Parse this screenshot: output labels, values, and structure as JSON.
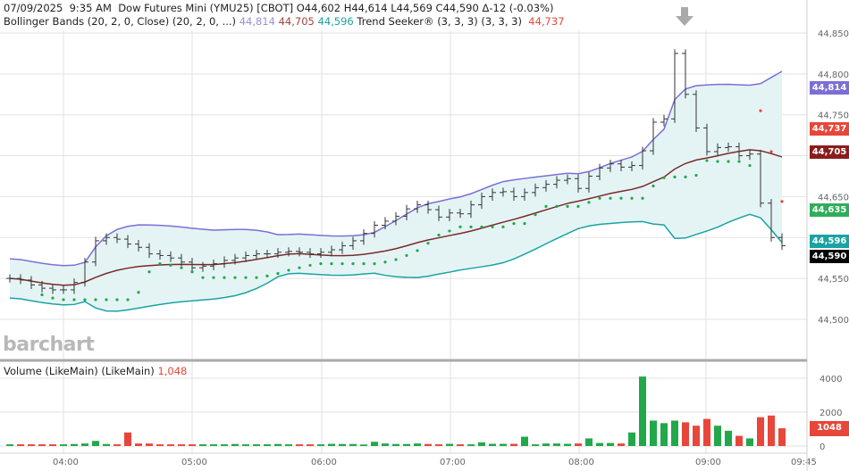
{
  "header": {
    "date": "07/09/2025",
    "time": "9:35 AM",
    "instrument": "Dow Futures Mini (YMU25) [CBOT]",
    "open": "O44,602",
    "high": "H44,614",
    "low": "L44,569",
    "close": "C44,590",
    "change": "Δ-12 (-0.03%)",
    "bb_label": "Bollinger Bands (20, 2, 0, Close)  (20, 2, 0, ...)",
    "bb_upper": "44,814",
    "bb_middle": "44,705",
    "bb_lower": "44,596",
    "ts_label": "Trend Seeker® (3, 3, 3)  (3, 3, 3)",
    "ts_value": "44,737"
  },
  "volume_header": {
    "label": "Volume (LikeMain)  (LikeMain)",
    "value": "1,048"
  },
  "watermark": "barchart",
  "price_tags": [
    {
      "text": "44,814",
      "color": "#7b6fd6",
      "price": 44814
    },
    {
      "text": "44,737",
      "color": "#e8463a",
      "price": 44737
    },
    {
      "text": "44,705",
      "color": "#8b1c1c",
      "price": 44705
    },
    {
      "text": "44,635",
      "color": "#2fae5a",
      "price": 44635
    },
    {
      "text": "44,596",
      "color": "#1aa3a3",
      "price": 44596
    },
    {
      "text": "44,590",
      "color": "#000000",
      "price": 44590
    }
  ],
  "volume_tag": {
    "text": "1048",
    "color": "#e8463a",
    "value": 1048
  },
  "colors": {
    "upper": "#7b6fd6",
    "middle": "#7a2a2a",
    "lower": "#1aa3a3",
    "band_fill": "#e4f4f4",
    "up": "#22a84a",
    "down": "#e8463a"
  },
  "chart_data": [
    {
      "type": "ohlc",
      "interval": "5 min",
      "start_time": "03:35",
      "y_ticks": [
        44500,
        44550,
        44600,
        44650,
        44700,
        44750,
        44800,
        44850
      ],
      "y_tick_labels": [
        "44,500",
        "44,550",
        "",
        "44,650",
        "",
        "44,750",
        "44,800",
        "44,850"
      ],
      "ylim": [
        44480,
        44870
      ],
      "closes": [
        44550,
        44548,
        44542,
        44538,
        44536,
        44536,
        44545,
        44570,
        44596,
        44600,
        44598,
        44592,
        44588,
        44580,
        44578,
        44575,
        44570,
        44563,
        44565,
        44568,
        44572,
        44575,
        44578,
        44580,
        44580,
        44582,
        44583,
        44582,
        44580,
        44582,
        44585,
        44590,
        44596,
        44605,
        44615,
        44620,
        44626,
        44635,
        44640,
        44634,
        44625,
        44630,
        44629,
        44640,
        44650,
        44655,
        44656,
        44650,
        44655,
        44661,
        44665,
        44670,
        44672,
        44660,
        44675,
        44685,
        44690,
        44686,
        44688,
        44706,
        44741,
        44745,
        44825,
        44775,
        44734,
        44705,
        44710,
        44711,
        44700,
        44702,
        44642,
        44600,
        44590
      ],
      "overlays": [
        "Bollinger Bands (20, 2)",
        "Trend Seeker"
      ]
    },
    {
      "type": "bar",
      "title": "Volume (LikeMain)",
      "y_ticks": [
        0,
        2000,
        4000
      ],
      "ylim": [
        0,
        4500
      ],
      "values": [
        100,
        100,
        100,
        100,
        100,
        100,
        120,
        150,
        300,
        120,
        100,
        800,
        150,
        150,
        100,
        100,
        100,
        100,
        100,
        100,
        100,
        120,
        100,
        100,
        100,
        120,
        100,
        100,
        100,
        100,
        130,
        120,
        120,
        90,
        250,
        150,
        120,
        120,
        150,
        120,
        100,
        130,
        100,
        100,
        220,
        130,
        130,
        130,
        550,
        100,
        150,
        150,
        130,
        150,
        450,
        180,
        180,
        150,
        800,
        4100,
        1500,
        1350,
        1500,
        1400,
        1200,
        1600,
        1200,
        900,
        600,
        450,
        1700,
        1800,
        1048
      ],
      "x_tick_labels": [
        "04:00",
        "05:00",
        "06:00",
        "07:00",
        "08:00",
        "09:00",
        "09:45"
      ]
    }
  ]
}
